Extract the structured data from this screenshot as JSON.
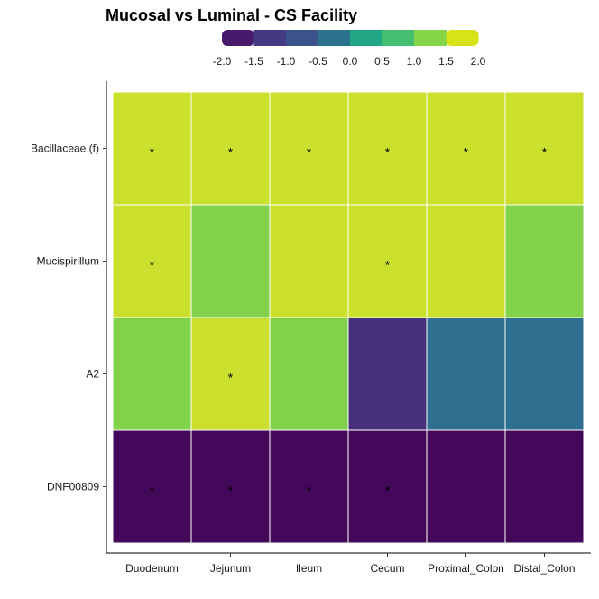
{
  "chart_data": {
    "type": "heatmap",
    "title": "Mucosal vs Luminal - CS Facility",
    "x_categories": [
      "Duodenum",
      "Jejunum",
      "Ileum",
      "Cecum",
      "Proximal_Colon",
      "Distal_Colon"
    ],
    "y_categories": [
      "Bacillaceae (f)",
      "Mucispirillum",
      "A2",
      "DNF00809"
    ],
    "values": [
      [
        2.0,
        2.0,
        2.0,
        2.0,
        2.0,
        2.0
      ],
      [
        2.0,
        1.5,
        2.0,
        2.0,
        2.0,
        1.5
      ],
      [
        1.5,
        2.0,
        1.5,
        -1.5,
        -0.5,
        -0.5
      ],
      [
        -2.0,
        -2.0,
        -2.0,
        -2.0,
        -2.0,
        -2.0
      ]
    ],
    "significant": [
      [
        true,
        true,
        true,
        true,
        true,
        true
      ],
      [
        true,
        false,
        false,
        true,
        false,
        false
      ],
      [
        false,
        true,
        false,
        false,
        false,
        false
      ],
      [
        true,
        true,
        true,
        true,
        false,
        false
      ]
    ],
    "significance_marker": "*",
    "legend": {
      "position": "top",
      "ticks": [
        "-2.0",
        "-1.5",
        "-1.0",
        "-0.5",
        "0.0",
        "0.5",
        "1.0",
        "1.5",
        "2.0"
      ],
      "colors": [
        "#481a6c",
        "#443983",
        "#3b528b",
        "#2c728e",
        "#21a685",
        "#44bf70",
        "#86d549",
        "#d8e219"
      ]
    },
    "color_scale": "viridis",
    "range": [
      -2.0,
      2.0
    ],
    "grid": false
  }
}
